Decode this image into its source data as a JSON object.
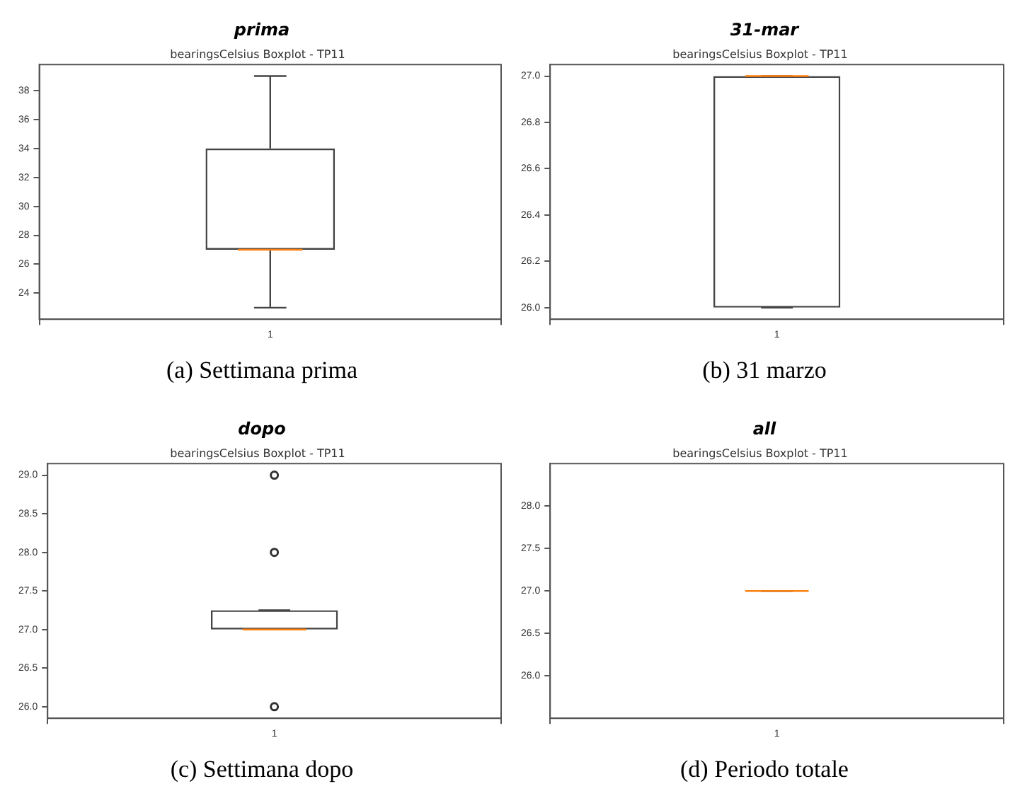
{
  "chart_data": [
    {
      "type": "box",
      "title": "prima",
      "subtitle": "bearingsCelsius Boxplot - TP11",
      "annotations": [
        "(a) Settimana prima"
      ],
      "categories": [
        "1"
      ],
      "boxes": [
        {
          "low": 23,
          "q1": 27,
          "median": 27,
          "q3": 34,
          "high": 39
        }
      ],
      "ylim": [
        22.2,
        39.8
      ],
      "yticks": [
        24,
        26,
        28,
        30,
        32,
        34,
        36,
        38
      ]
    },
    {
      "type": "box",
      "title": "31-mar",
      "subtitle": "bearingsCelsius Boxplot - TP11",
      "annotations": [
        "(b) 31 marzo"
      ],
      "categories": [
        "1"
      ],
      "boxes": [
        {
          "low": 26,
          "q1": 26,
          "median": 27,
          "q3": 27,
          "high": 27
        }
      ],
      "ylim": [
        25.95,
        27.05
      ],
      "yticks": [
        {
          "value": 26,
          "label": "26.0"
        },
        {
          "value": 26.2,
          "label": "26.2"
        },
        {
          "value": 26.4,
          "label": "26.4"
        },
        {
          "value": 26.6,
          "label": "26.6"
        },
        {
          "value": 26.8,
          "label": "26.8"
        },
        {
          "value": 27,
          "label": "27.0"
        }
      ]
    },
    {
      "type": "box",
      "title": "dopo",
      "subtitle": "bearingsCelsius Boxplot - TP11",
      "annotations": [
        "(c) Settimana dopo"
      ],
      "categories": [
        "1"
      ],
      "boxes": [
        {
          "low": 27,
          "q1": 27,
          "median": 27,
          "q3": 27.25,
          "high": 27.25,
          "outliers": [
            29,
            28,
            26
          ]
        }
      ],
      "ylim": [
        25.85,
        29.15
      ],
      "yticks": [
        {
          "value": 26,
          "label": "26.0"
        },
        {
          "value": 26.5,
          "label": "26.5"
        },
        {
          "value": 27,
          "label": "27.0"
        },
        {
          "value": 27.5,
          "label": "27.5"
        },
        {
          "value": 28,
          "label": "28.0"
        },
        {
          "value": 28.5,
          "label": "28.5"
        },
        {
          "value": 29,
          "label": "29.0"
        }
      ]
    },
    {
      "type": "box",
      "title": "all",
      "subtitle": "bearingsCelsius Boxplot - TP11",
      "annotations": [
        "(d) Periodo totale"
      ],
      "categories": [
        "1"
      ],
      "boxes": [
        {
          "low": 27,
          "q1": 27,
          "median": 27,
          "q3": 27,
          "high": 27
        }
      ],
      "ylim": [
        25.5,
        28.5
      ],
      "yticks": [
        {
          "value": 26,
          "label": "26.0"
        },
        {
          "value": 26.5,
          "label": "26.5"
        },
        {
          "value": 27,
          "label": "27.0"
        },
        {
          "value": 27.5,
          "label": "27.5"
        },
        {
          "value": 28,
          "label": "28.0"
        }
      ]
    }
  ]
}
